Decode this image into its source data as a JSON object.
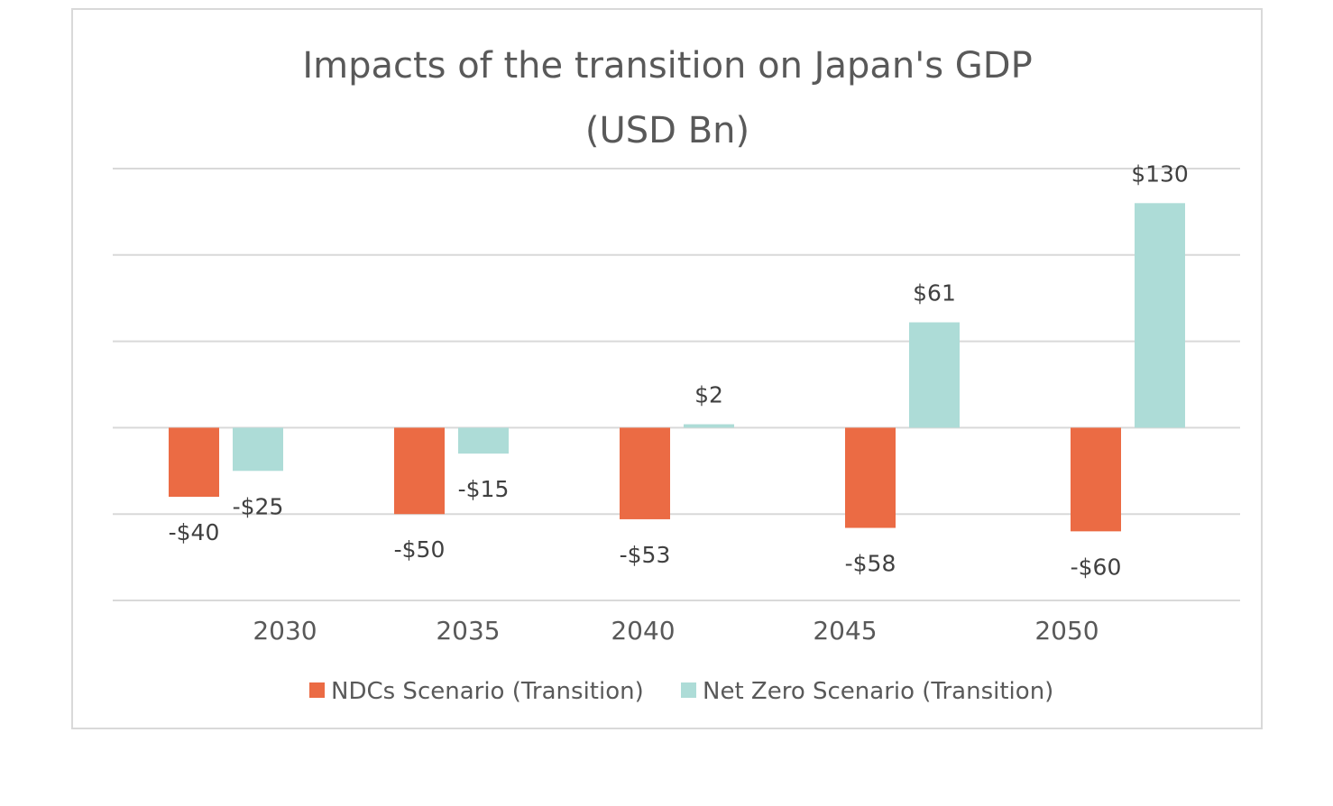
{
  "chart_data": {
    "type": "bar",
    "title": "Impacts of the transition on Japan's GDP",
    "subtitle": "(USD Bn)",
    "categories": [
      "2030",
      "2035",
      "2040",
      "2045",
      "2050"
    ],
    "series": [
      {
        "name": "NDCs Scenario (Transition)",
        "color": "#eb6b44",
        "values": [
          -40,
          -50,
          -53,
          -58,
          -60
        ],
        "labels": [
          "-$40",
          "-$50",
          "-$53",
          "-$58",
          "-$60"
        ]
      },
      {
        "name": "Net Zero Scenario (Transition)",
        "color": "#addcd7",
        "values": [
          -25,
          -15,
          2,
          61,
          130
        ],
        "labels": [
          "-$25",
          "-$15",
          "$2",
          "$61",
          "$130"
        ]
      }
    ],
    "ylim": [
      -100,
      150
    ],
    "y_gridlines": [
      -100,
      -50,
      0,
      50,
      100,
      150
    ],
    "grid": true,
    "legend_position": "bottom"
  }
}
